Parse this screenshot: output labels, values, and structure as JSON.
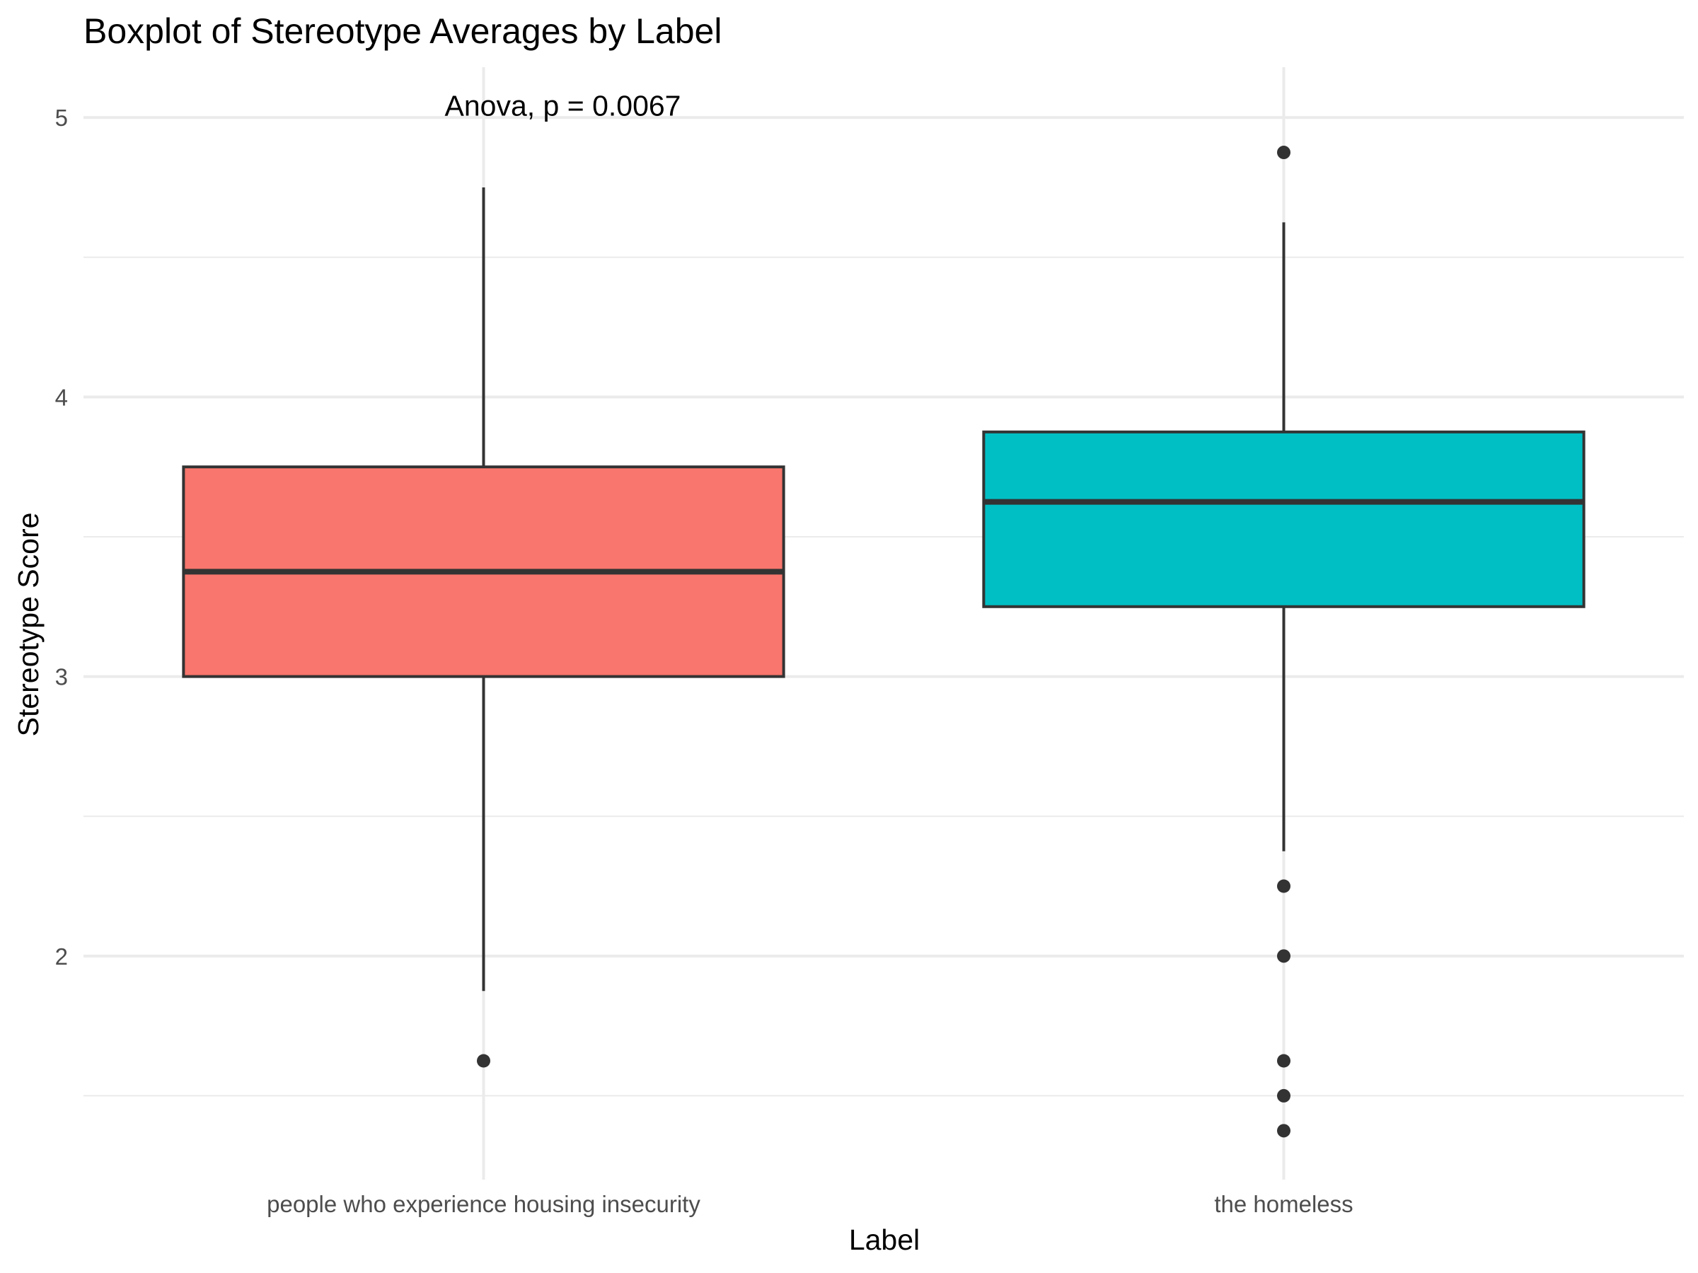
{
  "chart_data": {
    "type": "boxplot",
    "title": "Boxplot of Stereotype Averages by Label",
    "xlabel": "Label",
    "ylabel": "Stereotype Score",
    "ylim": [
      1.2,
      5.18
    ],
    "yticks": [
      2,
      3,
      4,
      5
    ],
    "grid": true,
    "legend": "none",
    "annotation": {
      "text": "Anova, p = 0.0067",
      "x": "people who experience housing insecurity",
      "y": 5.04
    },
    "categories": [
      "people who experience housing insecurity",
      "the homeless"
    ],
    "boxes": [
      {
        "category": "people who experience housing insecurity",
        "whisker_low": 1.875,
        "q1": 3.0,
        "median": 3.375,
        "q3": 3.75,
        "whisker_high": 4.75,
        "outliers": [
          1.625
        ],
        "color": "#F8766D"
      },
      {
        "category": "the homeless",
        "whisker_low": 2.375,
        "q1": 3.25,
        "median": 3.625,
        "q3": 3.875,
        "whisker_high": 4.625,
        "outliers": [
          4.875,
          2.25,
          2.0,
          1.625,
          1.5,
          1.375
        ],
        "color": "#00BFC4"
      }
    ]
  }
}
